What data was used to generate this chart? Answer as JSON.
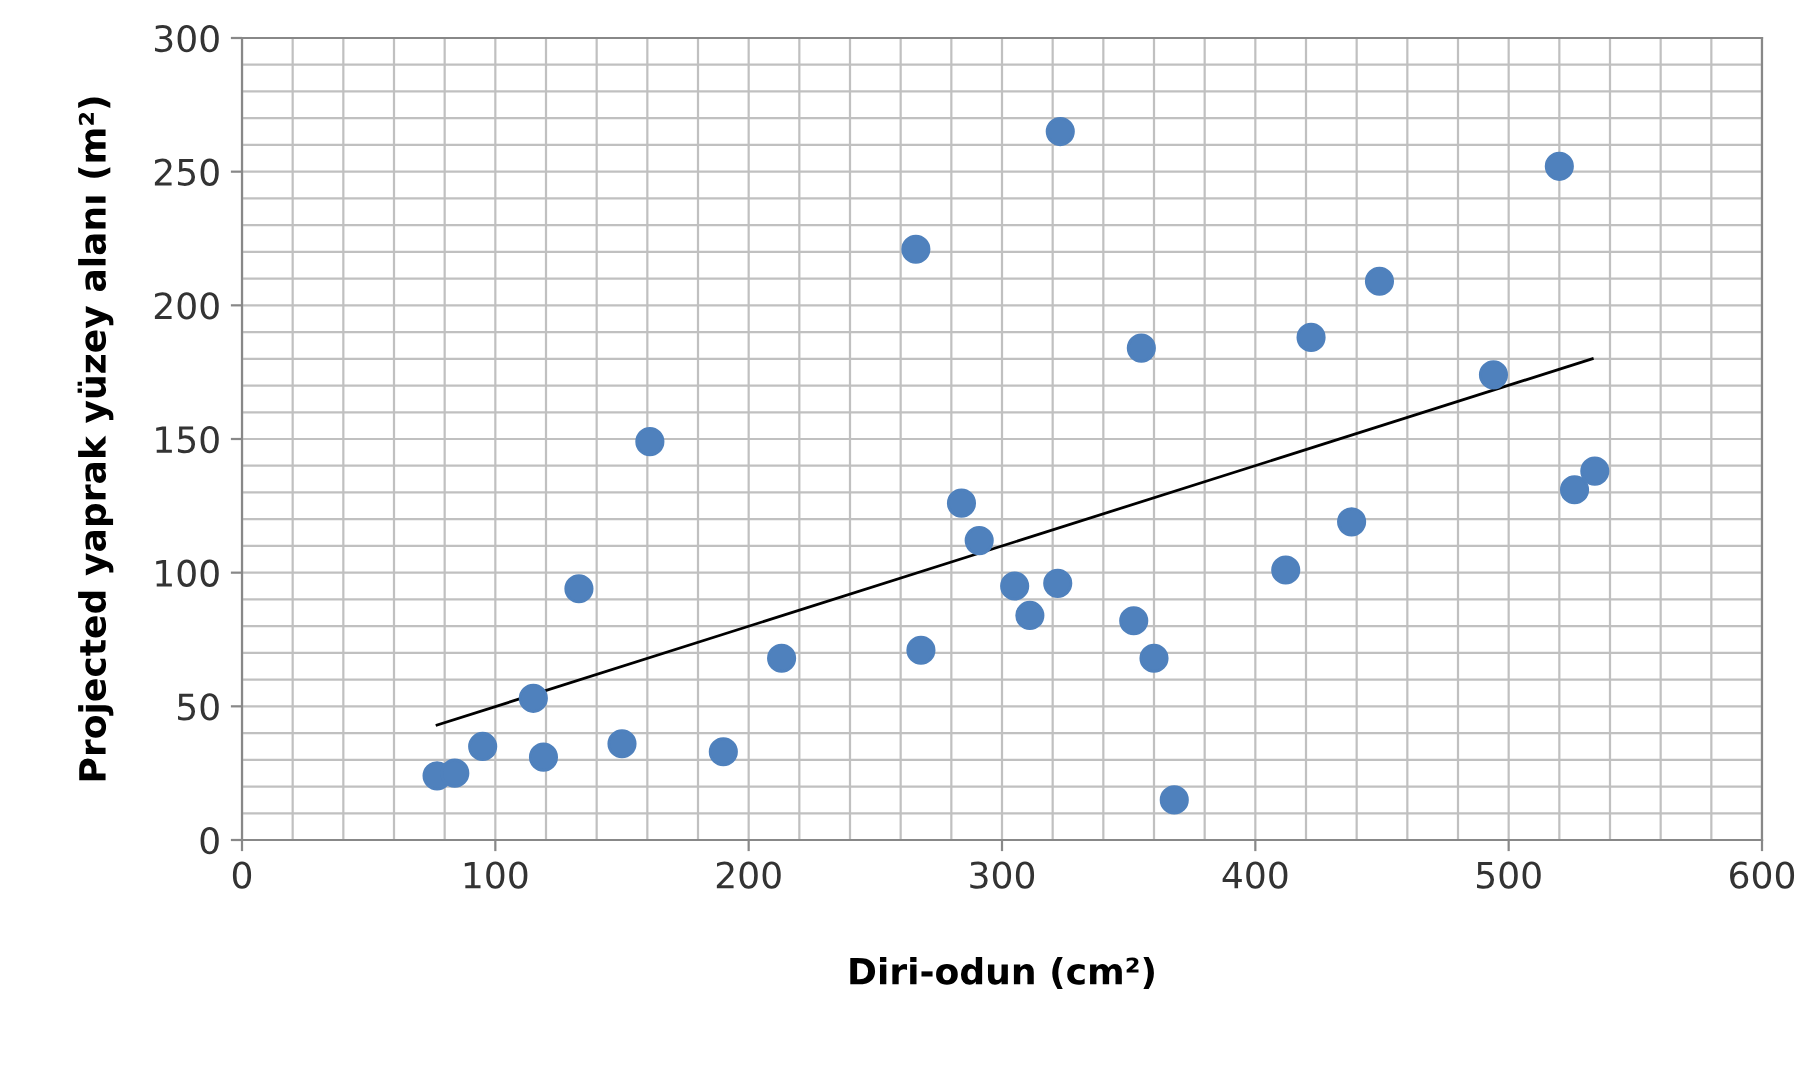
{
  "chart_data": {
    "type": "scatter",
    "xlabel": "Diri-odun (cm²)",
    "ylabel": "Projected yaprak yüzey alanı (m²)",
    "xlim": [
      0,
      600
    ],
    "xticks": [
      0,
      100,
      200,
      300,
      400,
      500,
      600
    ],
    "ylim": [
      0,
      300
    ],
    "yticks": [
      0,
      50,
      100,
      150,
      200,
      250,
      300
    ],
    "grid": true,
    "legend": false,
    "marker": "circle",
    "series": [
      {
        "color": "#4f81bd",
        "x": [
          77,
          84,
          95,
          115,
          119,
          133,
          150,
          161,
          190,
          213,
          266,
          268,
          284,
          291,
          305,
          311,
          322,
          323,
          352,
          355,
          360,
          368,
          412,
          422,
          438,
          449,
          494,
          520,
          526,
          534
        ],
        "values": [
          24,
          25,
          35,
          53,
          31,
          94,
          36,
          149,
          33,
          68,
          221,
          71,
          126,
          112,
          95,
          84,
          96,
          265,
          82,
          184,
          68,
          15,
          101,
          188,
          119,
          209,
          174,
          252,
          131,
          138
        ]
      },
      {
        "type": "line",
        "color": "#000000",
        "marker": "none",
        "line_style": "solid",
        "x": [
          77,
          533
        ],
        "values": [
          43,
          180
        ]
      }
    ]
  }
}
